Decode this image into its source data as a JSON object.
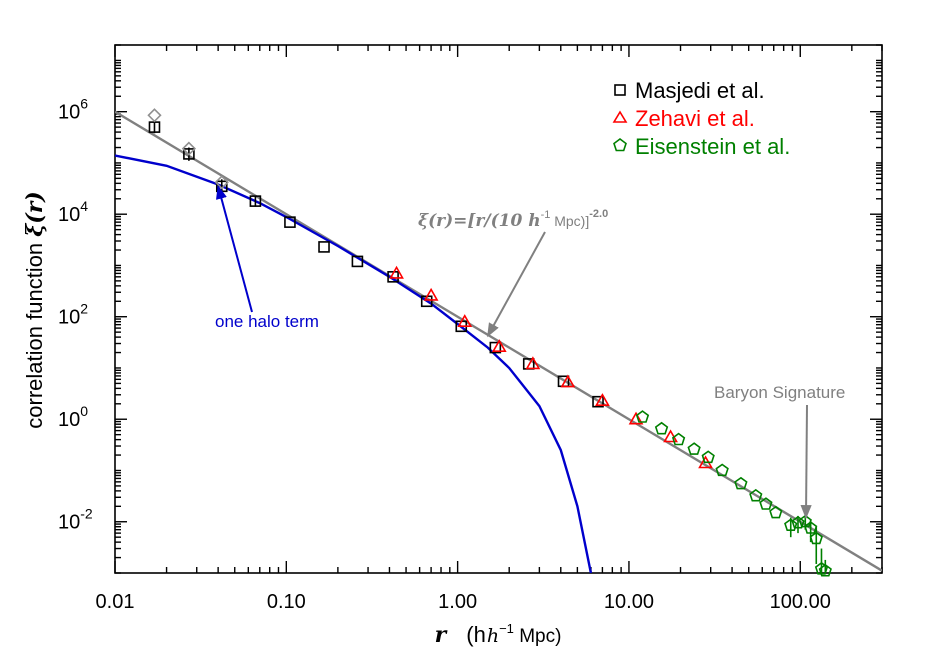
{
  "chart_data": {
    "type": "scatter",
    "title": "",
    "xlabel": {
      "var": "r",
      "units_pre": "(h",
      "units_exp": "−1",
      "units_post": " Mpc)"
    },
    "ylabel": {
      "prefix": "correlation function ",
      "var": "ξ(r)"
    },
    "xscale": "log",
    "yscale": "log",
    "xlim": [
      0.01,
      300
    ],
    "ylim": [
      0.001,
      20000000
    ],
    "xticks": [
      {
        "value": 0.01,
        "label": "0.01"
      },
      {
        "value": 0.1,
        "label": "0.10"
      },
      {
        "value": 1,
        "label": "1.00"
      },
      {
        "value": 10,
        "label": "10.00"
      },
      {
        "value": 100,
        "label": "100.00"
      }
    ],
    "yticks": [
      {
        "value": 0.01,
        "base": "10",
        "exp": "-2"
      },
      {
        "value": 1,
        "base": "10",
        "exp": "0"
      },
      {
        "value": 100,
        "base": "10",
        "exp": "2"
      },
      {
        "value": 10000,
        "base": "10",
        "exp": "4"
      },
      {
        "value": 1000000,
        "base": "10",
        "exp": "6"
      }
    ],
    "legend": {
      "position": "top-right"
    },
    "series": [
      {
        "name": "Masjedi et al.",
        "marker": "square",
        "color": "#000000",
        "points": [
          {
            "x": 0.017,
            "y": 500000,
            "err": [
              380000,
              650000
            ]
          },
          {
            "x": 0.027,
            "y": 150000,
            "err": [
              110000,
              200000
            ]
          },
          {
            "x": 0.042,
            "y": 35000,
            "err": [
              26000,
              48000
            ]
          },
          {
            "x": 0.066,
            "y": 18000,
            "err": [
              14000,
              23000
            ]
          },
          {
            "x": 0.105,
            "y": 7000
          },
          {
            "x": 0.166,
            "y": 2300
          },
          {
            "x": 0.26,
            "y": 1200
          },
          {
            "x": 0.42,
            "y": 600
          },
          {
            "x": 0.66,
            "y": 200
          },
          {
            "x": 1.05,
            "y": 65
          },
          {
            "x": 1.66,
            "y": 25
          },
          {
            "x": 2.6,
            "y": 12
          },
          {
            "x": 4.15,
            "y": 5.5
          },
          {
            "x": 6.6,
            "y": 2.2
          }
        ]
      },
      {
        "name": "Zehavi et al.",
        "marker": "triangle",
        "color": "#ff0000",
        "points": [
          {
            "x": 0.44,
            "y": 700
          },
          {
            "x": 0.7,
            "y": 260
          },
          {
            "x": 1.1,
            "y": 80
          },
          {
            "x": 1.75,
            "y": 26
          },
          {
            "x": 2.75,
            "y": 12
          },
          {
            "x": 4.4,
            "y": 5.3
          },
          {
            "x": 7.0,
            "y": 2.3
          },
          {
            "x": 11,
            "y": 1.0
          },
          {
            "x": 17.5,
            "y": 0.45
          },
          {
            "x": 28,
            "y": 0.14
          }
        ]
      },
      {
        "name": "Eisenstein et al.",
        "marker": "pentagon",
        "color": "#008000",
        "points": [
          {
            "x": 12,
            "y": 1.1
          },
          {
            "x": 15.5,
            "y": 0.65
          },
          {
            "x": 19.5,
            "y": 0.4
          },
          {
            "x": 24,
            "y": 0.26
          },
          {
            "x": 29,
            "y": 0.18
          },
          {
            "x": 35,
            "y": 0.1
          },
          {
            "x": 45,
            "y": 0.055
          },
          {
            "x": 55,
            "y": 0.032
          },
          {
            "x": 63,
            "y": 0.022
          },
          {
            "x": 72,
            "y": 0.015
          },
          {
            "x": 88,
            "y": 0.0085,
            "err": [
              0.005,
              0.012
            ]
          },
          {
            "x": 97,
            "y": 0.0095,
            "err": [
              0.006,
              0.013
            ]
          },
          {
            "x": 107,
            "y": 0.01,
            "err": [
              0.007,
              0.013
            ]
          },
          {
            "x": 115,
            "y": 0.0075,
            "err": [
              0.004,
              0.011
            ]
          },
          {
            "x": 124,
            "y": 0.0047,
            "err": [
              0.0015,
              0.008
            ]
          },
          {
            "x": 133,
            "y": 0.0012,
            "err": [
              0.001,
              0.003
            ]
          },
          {
            "x": 140,
            "y": 0.0011,
            "err": [
              0.001,
              0.0018
            ]
          }
        ]
      },
      {
        "name": "",
        "marker": "diamond",
        "color": "#909090",
        "points": [
          {
            "x": 0.017,
            "y": 850000
          },
          {
            "x": 0.027,
            "y": 190000
          },
          {
            "x": 0.042,
            "y": 42000
          }
        ]
      }
    ],
    "curves": [
      {
        "id": "power-law",
        "color": "#808080",
        "formula": "xi = (r/10)^-2.0",
        "points": [
          [
            0.01,
            1000000
          ],
          [
            300,
            0.00111
          ]
        ]
      },
      {
        "id": "one-halo",
        "color": "#0000cc",
        "points": [
          [
            0.01,
            140000
          ],
          [
            0.02,
            88000
          ],
          [
            0.04,
            38000
          ],
          [
            0.07,
            16500
          ],
          [
            0.1,
            8800
          ],
          [
            0.2,
            2400
          ],
          [
            0.4,
            600
          ],
          [
            0.7,
            180
          ],
          [
            1.0,
            72
          ],
          [
            1.5,
            25
          ],
          [
            2.0,
            10
          ],
          [
            3.0,
            1.8
          ],
          [
            4.0,
            0.25
          ],
          [
            5.0,
            0.02
          ],
          [
            6.0,
            0.001
          ]
        ]
      }
    ],
    "annotations": {
      "power_law": {
        "prefix": "ξ(r)=[r/(10 ",
        "unit_var": "h",
        "unit_exp": "-1",
        "unit_post": " Mpc)]",
        "exp": "-2.0",
        "color": "#808080",
        "arrow_to": {
          "x": 1.5,
          "y": 42
        }
      },
      "one_halo": {
        "text": "one halo term",
        "color": "#0000cc",
        "arrow_to": {
          "x": 0.04,
          "y": 35000
        }
      },
      "baryon": {
        "text": "Baryon Signature",
        "color": "#808080",
        "arrow_to": {
          "x": 108,
          "y": 0.012
        }
      }
    }
  }
}
